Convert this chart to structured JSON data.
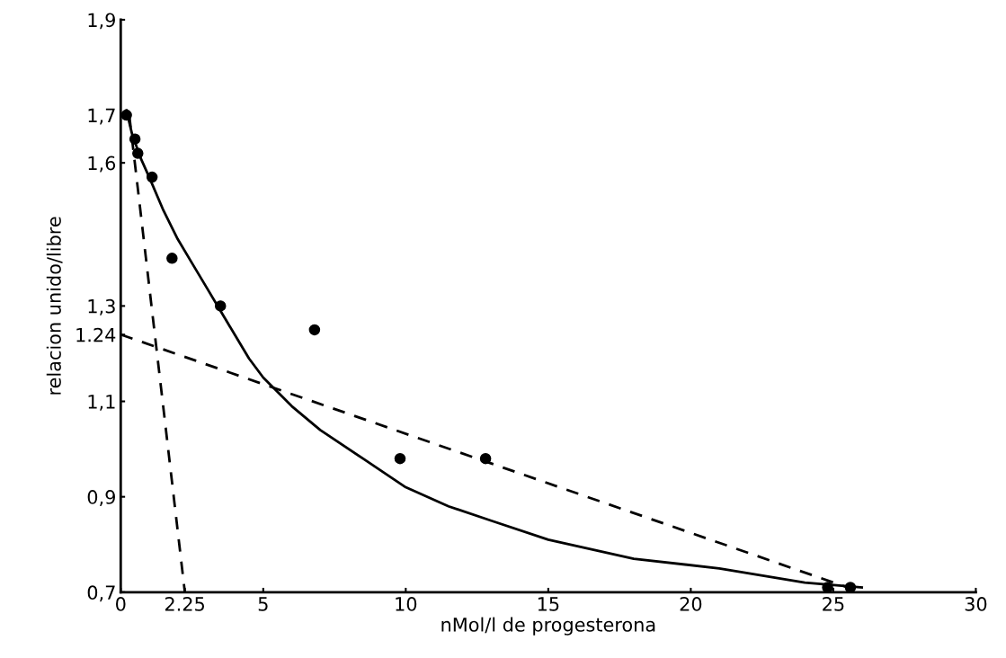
{
  "chart_data": {
    "type": "scatter",
    "xlabel": "nMol/l de progesterona",
    "ylabel": "relacion unido/libre",
    "xlim": [
      0,
      30
    ],
    "ylim": [
      0.7,
      1.9
    ],
    "xticks": [
      0,
      {
        "value": 2.25,
        "label": "2.25"
      },
      5,
      10,
      15,
      20,
      25,
      30
    ],
    "yticks": [
      {
        "value": 0.7,
        "label": "0,7"
      },
      {
        "value": 0.9,
        "label": "0,9"
      },
      {
        "value": 1.1,
        "label": "1,1"
      },
      {
        "value": 1.24,
        "label": "1.24"
      },
      {
        "value": 1.3,
        "label": "1,3"
      },
      {
        "value": 1.6,
        "label": "1,6"
      },
      {
        "value": 1.7,
        "label": "1,7"
      },
      {
        "value": 1.9,
        "label": "1,9"
      }
    ],
    "grid": false,
    "legend": false,
    "series": [
      {
        "color": "#000000",
        "marker": "circle",
        "x": [
          0.2,
          0.5,
          0.6,
          1.1,
          1.8,
          3.5,
          6.8,
          9.8,
          12.8,
          24.8,
          25.6
        ],
        "values": [
          1.7,
          1.65,
          1.62,
          1.57,
          1.4,
          1.3,
          1.25,
          0.98,
          0.98,
          0.71,
          0.71
        ]
      },
      {
        "type": "line",
        "color": "#000000",
        "line_style": "solid",
        "x": [
          0.2,
          0.4,
          0.7,
          1,
          1.5,
          2,
          2.5,
          3,
          3.5,
          4,
          4.5,
          5,
          6,
          7,
          8.5,
          10,
          11.5,
          13,
          15,
          18,
          21,
          24,
          26
        ],
        "values": [
          1.71,
          1.66,
          1.61,
          1.57,
          1.5,
          1.44,
          1.39,
          1.34,
          1.29,
          1.24,
          1.19,
          1.15,
          1.09,
          1.04,
          0.98,
          0.92,
          0.88,
          0.85,
          0.81,
          0.77,
          0.75,
          0.72,
          0.71
        ]
      },
      {
        "type": "line",
        "color": "#000000",
        "line_style": "dashed",
        "x": [
          0,
          25.5
        ],
        "values": [
          1.24,
          0.71
        ]
      },
      {
        "type": "line",
        "color": "#000000",
        "line_style": "dashed",
        "x": [
          0.3,
          2.25
        ],
        "values": [
          1.7,
          0.7
        ]
      }
    ]
  }
}
